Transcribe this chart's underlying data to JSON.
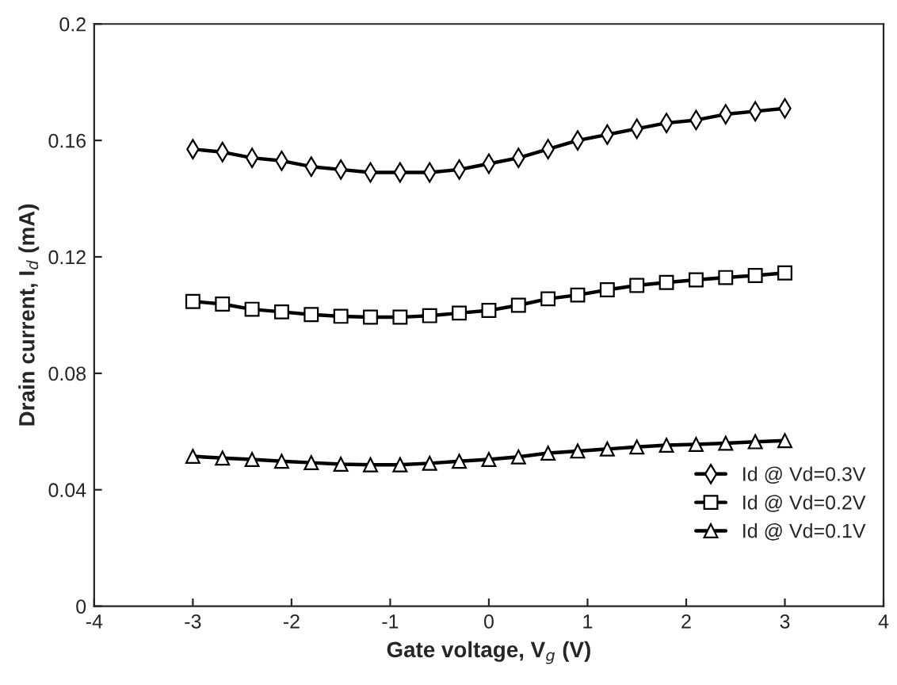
{
  "chart_data": {
    "type": "line",
    "xlabel": "Gate voltage, V$_{g}$ (V)",
    "ylabel": "Drain current, I$_{d}$ (mA)",
    "x": [
      -3,
      -2.7,
      -2.4,
      -2.1,
      -1.8,
      -1.5,
      -1.2,
      -0.9,
      -0.6,
      -0.3,
      0,
      0.3,
      0.6,
      0.9,
      1.2,
      1.5,
      1.8,
      2.1,
      2.4,
      2.7,
      3
    ],
    "series": [
      {
        "name": "Id @ Vd=0.3V",
        "color": "#000000",
        "marker": "diamond",
        "values": [
          0.157,
          0.156,
          0.154,
          0.153,
          0.151,
          0.15,
          0.149,
          0.149,
          0.149,
          0.15,
          0.152,
          0.154,
          0.157,
          0.16,
          0.162,
          0.164,
          0.166,
          0.167,
          0.169,
          0.17,
          0.171
        ]
      },
      {
        "name": "Id @ Vd=0.2V",
        "color": "#000000",
        "marker": "square",
        "values": [
          0.1047,
          0.1038,
          0.102,
          0.1011,
          0.1002,
          0.0996,
          0.0993,
          0.0993,
          0.0998,
          0.1007,
          0.1016,
          0.1034,
          0.1056,
          0.1069,
          0.1087,
          0.1102,
          0.1112,
          0.1121,
          0.1129,
          0.1136,
          0.1145
        ]
      },
      {
        "name": "Id @ Vd=0.1V",
        "color": "#000000",
        "marker": "triangle",
        "values": [
          0.0515,
          0.0509,
          0.0504,
          0.0498,
          0.0493,
          0.0488,
          0.0486,
          0.0486,
          0.0491,
          0.0498,
          0.0504,
          0.0513,
          0.0526,
          0.0533,
          0.054,
          0.0547,
          0.0553,
          0.0556,
          0.056,
          0.0565,
          0.0569
        ]
      }
    ],
    "xlim": [
      -4,
      4
    ],
    "xticks": [
      -4,
      -3,
      -2,
      -1,
      0,
      1,
      2,
      3,
      4
    ],
    "ylim": [
      0,
      0.2
    ],
    "yticks": [
      0,
      0.04,
      0.08,
      0.12,
      0.16,
      0.2
    ],
    "grid": false,
    "legend": "bottom right",
    "line_style": "solid"
  }
}
